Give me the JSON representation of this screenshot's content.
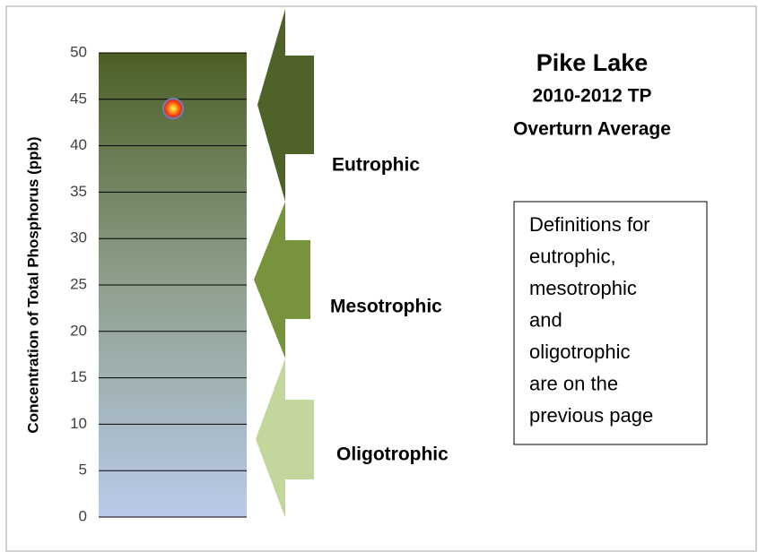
{
  "chart_data": {
    "type": "scatter",
    "title": "Pike Lake",
    "subtitle": [
      "2010-2012 TP",
      "Overturn Average"
    ],
    "ylabel": "Concentration of Total Phosphorus (ppb)",
    "values": [
      44
    ],
    "ylim": [
      0,
      50
    ],
    "yticks": [
      0,
      5,
      10,
      15,
      20,
      25,
      30,
      35,
      40,
      45,
      50
    ],
    "grid": true,
    "annotations": [
      "Eutrophic",
      "Mesotrophic",
      "Oligotrophic"
    ],
    "note": [
      "Definitions for",
      "eutrophic,",
      "mesotrophic",
      "and",
      "oligotrophic",
      "are on the",
      "previous page"
    ]
  }
}
